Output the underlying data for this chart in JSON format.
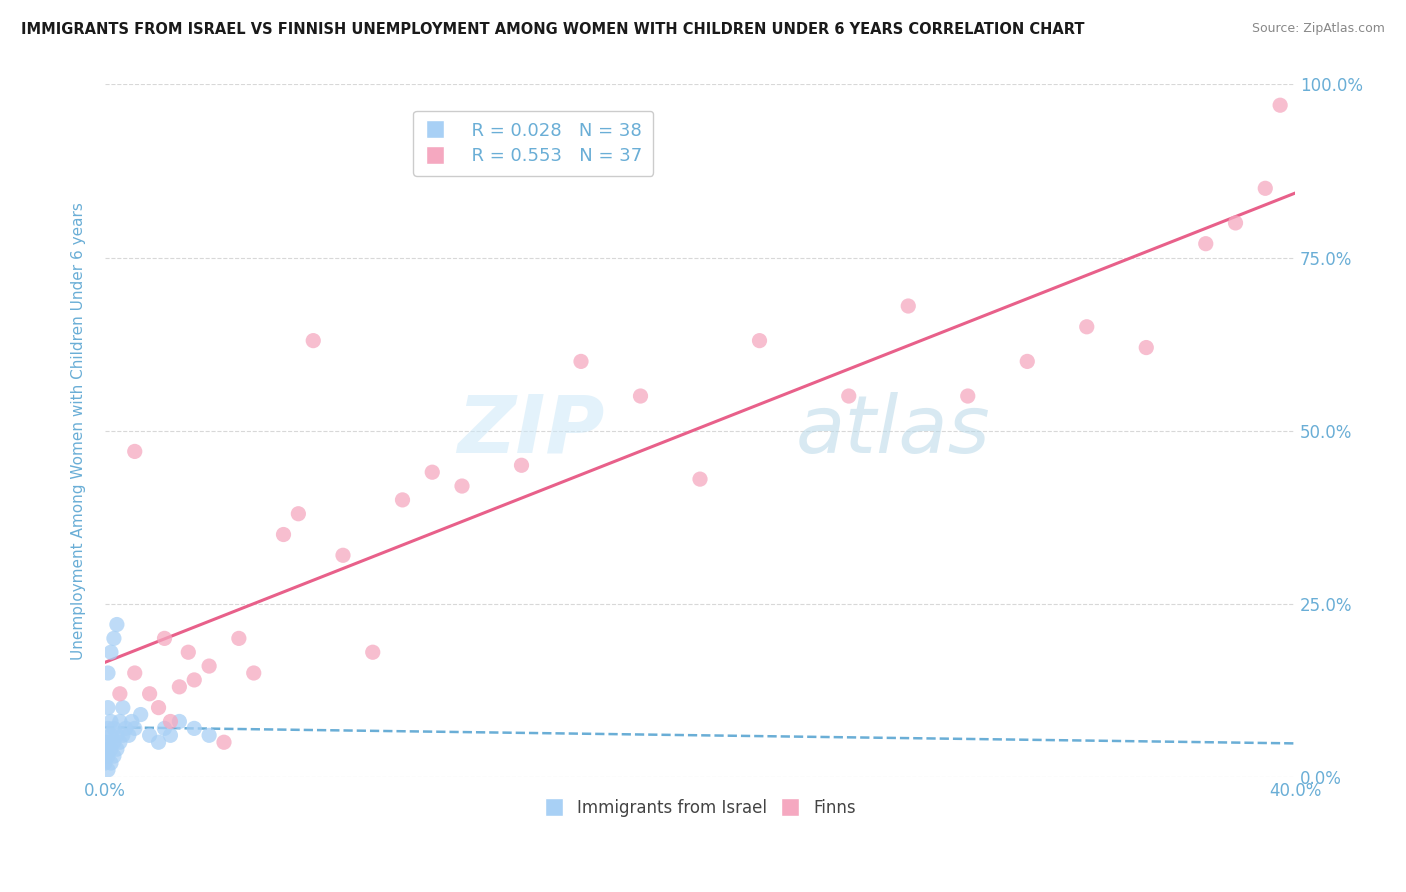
{
  "title": "IMMIGRANTS FROM ISRAEL VS FINNISH UNEMPLOYMENT AMONG WOMEN WITH CHILDREN UNDER 6 YEARS CORRELATION CHART",
  "source": "Source: ZipAtlas.com",
  "ylabel": "Unemployment Among Women with Children Under 6 years",
  "xlim": [
    0.0,
    0.4
  ],
  "ylim": [
    0.0,
    1.0
  ],
  "legend_r1": "R = 0.028",
  "legend_n1": "N = 38",
  "legend_r2": "R = 0.553",
  "legend_n2": "N = 37",
  "color_israel": "#a8d0f5",
  "color_finns": "#f5a8c0",
  "color_line_israel": "#6aaed6",
  "color_line_finns": "#e8608a",
  "color_axis": "#6aaed6",
  "background_color": "#ffffff",
  "grid_color": "#d8d8d8",
  "israel_x": [
    0.0,
    0.0,
    0.0,
    0.0,
    0.001,
    0.001,
    0.001,
    0.001,
    0.001,
    0.001,
    0.002,
    0.002,
    0.002,
    0.002,
    0.002,
    0.003,
    0.003,
    0.003,
    0.003,
    0.004,
    0.004,
    0.004,
    0.005,
    0.005,
    0.006,
    0.006,
    0.007,
    0.008,
    0.009,
    0.01,
    0.012,
    0.015,
    0.018,
    0.02,
    0.022,
    0.025,
    0.03,
    0.035
  ],
  "israel_y": [
    0.02,
    0.03,
    0.04,
    0.05,
    0.01,
    0.03,
    0.05,
    0.07,
    0.1,
    0.15,
    0.02,
    0.04,
    0.06,
    0.08,
    0.18,
    0.03,
    0.05,
    0.07,
    0.2,
    0.04,
    0.06,
    0.22,
    0.05,
    0.08,
    0.06,
    0.1,
    0.07,
    0.06,
    0.08,
    0.07,
    0.09,
    0.06,
    0.05,
    0.07,
    0.06,
    0.08,
    0.07,
    0.06
  ],
  "finns_x": [
    0.005,
    0.01,
    0.015,
    0.018,
    0.022,
    0.025,
    0.028,
    0.03,
    0.035,
    0.04,
    0.045,
    0.05,
    0.06,
    0.065,
    0.07,
    0.08,
    0.09,
    0.1,
    0.11,
    0.12,
    0.14,
    0.16,
    0.18,
    0.2,
    0.22,
    0.25,
    0.27,
    0.29,
    0.31,
    0.33,
    0.35,
    0.37,
    0.38,
    0.39,
    0.395,
    0.01,
    0.02
  ],
  "finns_y": [
    0.12,
    0.15,
    0.12,
    0.1,
    0.08,
    0.13,
    0.18,
    0.14,
    0.16,
    0.05,
    0.2,
    0.15,
    0.35,
    0.38,
    0.63,
    0.32,
    0.18,
    0.4,
    0.44,
    0.42,
    0.45,
    0.6,
    0.55,
    0.43,
    0.63,
    0.55,
    0.68,
    0.55,
    0.6,
    0.65,
    0.62,
    0.77,
    0.8,
    0.85,
    0.97,
    0.47,
    0.2
  ]
}
